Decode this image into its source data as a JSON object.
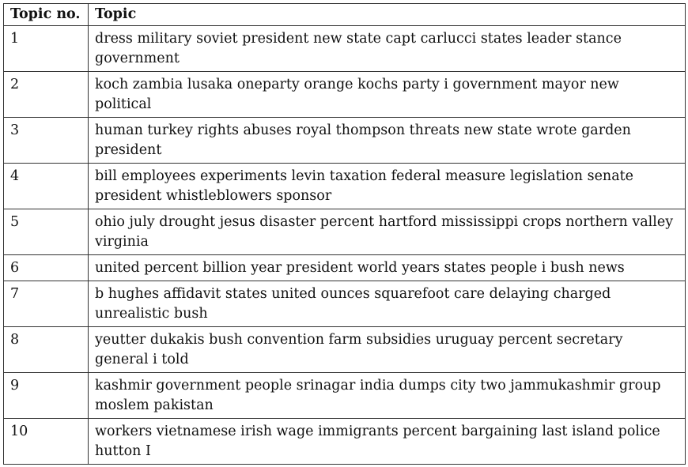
{
  "table": {
    "headers": {
      "topic_no": "Topic no.",
      "topic": "Topic"
    },
    "rows": [
      {
        "no": "1",
        "topic": "dress military soviet president new state capt carlucci states leader stance government"
      },
      {
        "no": "2",
        "topic": "koch zambia lusaka oneparty orange kochs party i government mayor new political"
      },
      {
        "no": "3",
        "topic": "human turkey rights abuses royal thompson threats new state wrote garden president"
      },
      {
        "no": "4",
        "topic": "bill employees experiments levin taxation federal measure legislation senate president whistleblowers sponsor"
      },
      {
        "no": "5",
        "topic": "ohio july drought jesus disaster percent hartford mississippi crops northern valley virginia"
      },
      {
        "no": "6",
        "topic": "united percent billion year president world years states people i bush news"
      },
      {
        "no": "7",
        "topic": "b hughes affidavit states united ounces squarefoot care delaying charged unrealistic bush"
      },
      {
        "no": "8",
        "topic": "yeutter dukakis bush convention farm subsidies uruguay percent secretary general i told"
      },
      {
        "no": "9",
        "topic": "kashmir government people srinagar india dumps city two jammukashmir group moslem pakistan"
      },
      {
        "no": "10",
        "topic": "workers vietnamese irish wage immigrants percent bargaining last island police hutton I"
      }
    ]
  }
}
